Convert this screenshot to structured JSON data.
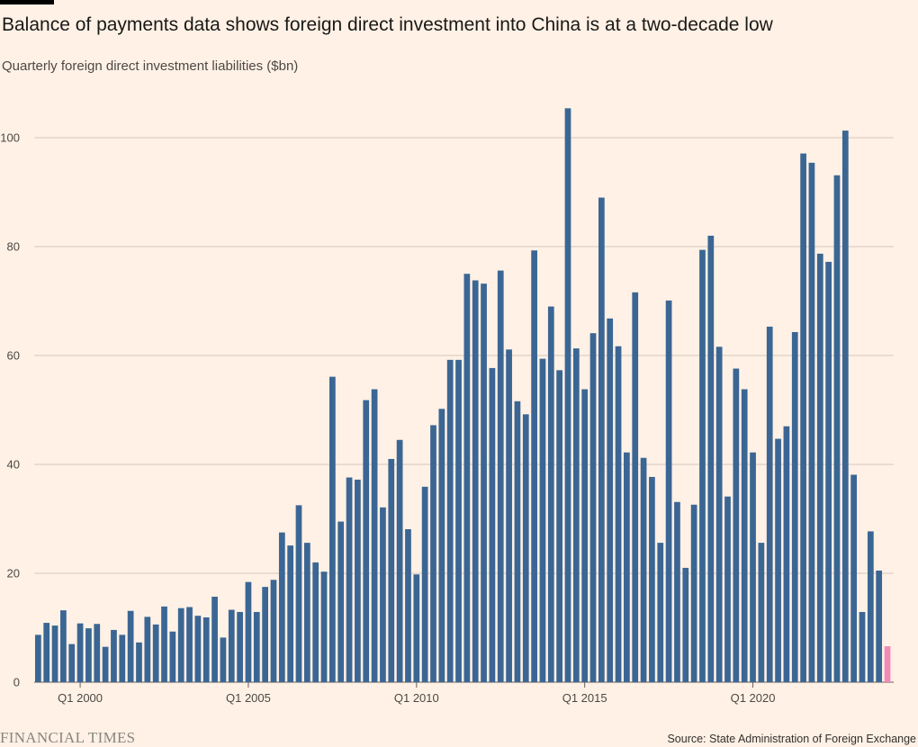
{
  "title": "Balance of payments data shows foreign direct investment into China is at a two-decade low",
  "subtitle": "Quarterly foreign direct investment liabilities ($bn)",
  "source": "Source: State Administration of Foreign Exchange",
  "brand": "FINANCIAL TIMES",
  "colors": {
    "bar": "#3b6694",
    "highlight": "#f28ab7",
    "grid": "#d4c8bd",
    "background": "#fff1e5"
  },
  "chart_data": {
    "type": "bar",
    "ylabel": "Quarterly foreign direct investment liabilities ($bn)",
    "ylim": [
      0,
      108
    ],
    "yticks": [
      0,
      20,
      40,
      60,
      80,
      100
    ],
    "xtick_labels": [
      "Q1 2000",
      "Q1 2005",
      "Q1 2010",
      "Q1 2015",
      "Q1 2020"
    ],
    "xtick_quarter_index": [
      5,
      25,
      45,
      65,
      85
    ],
    "start_quarter": "Q4 1998",
    "highlight_last": true,
    "values": [
      8.7,
      10.9,
      10.4,
      13.2,
      7.0,
      10.8,
      9.9,
      10.7,
      6.5,
      9.6,
      8.7,
      13.1,
      7.3,
      12.0,
      10.6,
      13.9,
      9.3,
      13.6,
      13.8,
      12.2,
      11.9,
      15.7,
      8.2,
      13.3,
      12.9,
      18.4,
      12.9,
      17.5,
      18.8,
      27.5,
      25.1,
      32.5,
      25.6,
      22.0,
      20.3,
      56.1,
      29.5,
      37.6,
      37.2,
      51.8,
      53.8,
      32.1,
      41.0,
      44.5,
      28.1,
      19.8,
      35.9,
      47.2,
      50.2,
      59.2,
      59.2,
      75.0,
      73.8,
      73.2,
      57.7,
      75.6,
      61.1,
      51.6,
      49.2,
      79.3,
      59.4,
      69.0,
      57.3,
      105.4,
      61.3,
      53.8,
      64.1,
      89.0,
      66.8,
      61.7,
      42.2,
      71.6,
      41.2,
      37.7,
      25.6,
      70.1,
      33.1,
      21.0,
      32.6,
      79.4,
      82.0,
      61.6,
      34.1,
      57.6,
      53.8,
      42.2,
      25.6,
      65.3,
      44.7,
      47.0,
      64.3,
      97.1,
      95.4,
      78.7,
      77.2,
      93.1,
      101.3,
      38.1,
      12.9,
      27.7,
      20.5,
      6.6
    ]
  }
}
